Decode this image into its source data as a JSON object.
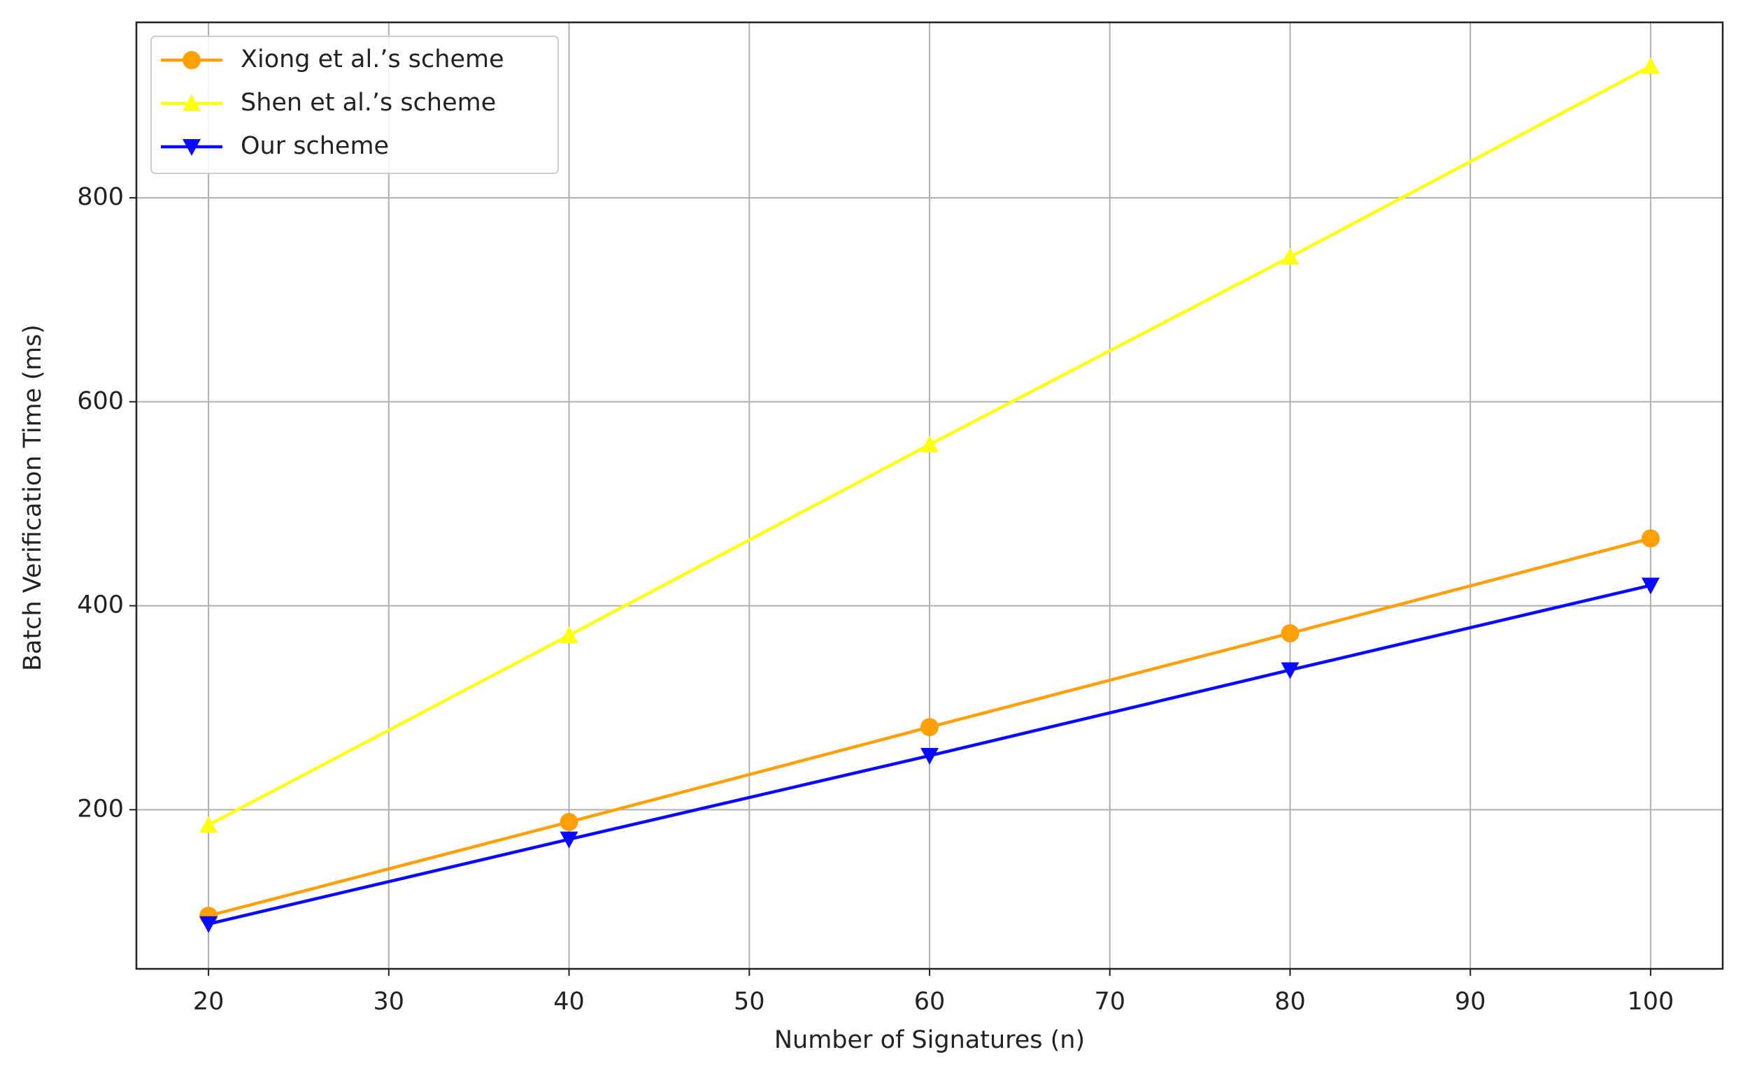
{
  "chart_data": {
    "type": "line",
    "x_label": "Number of Signatures (n)",
    "y_label": "Batch Verification Time (ms)",
    "x": [
      20,
      40,
      60,
      80,
      100
    ],
    "series": [
      {
        "name": "Xiong et al.’s scheme",
        "color": "#ff9f0a",
        "marker": "circle",
        "values": [
          96,
          188,
          281,
          373,
          466
        ]
      },
      {
        "name": "Shen et al.’s scheme",
        "color": "#ffff14",
        "marker": "triangle-up",
        "values": [
          185,
          371,
          558,
          742,
          929
        ]
      },
      {
        "name": "Our scheme",
        "color": "#0a0aff",
        "marker": "triangle-down",
        "values": [
          88,
          171,
          253,
          337,
          420
        ]
      }
    ],
    "xlim": [
      16,
      104
    ],
    "xticks": [
      20,
      30,
      40,
      50,
      60,
      70,
      80,
      90,
      100
    ],
    "ylim": [
      44,
      972
    ],
    "yticks": [
      200,
      400,
      600,
      800
    ],
    "grid": true,
    "legend": "upper left"
  }
}
